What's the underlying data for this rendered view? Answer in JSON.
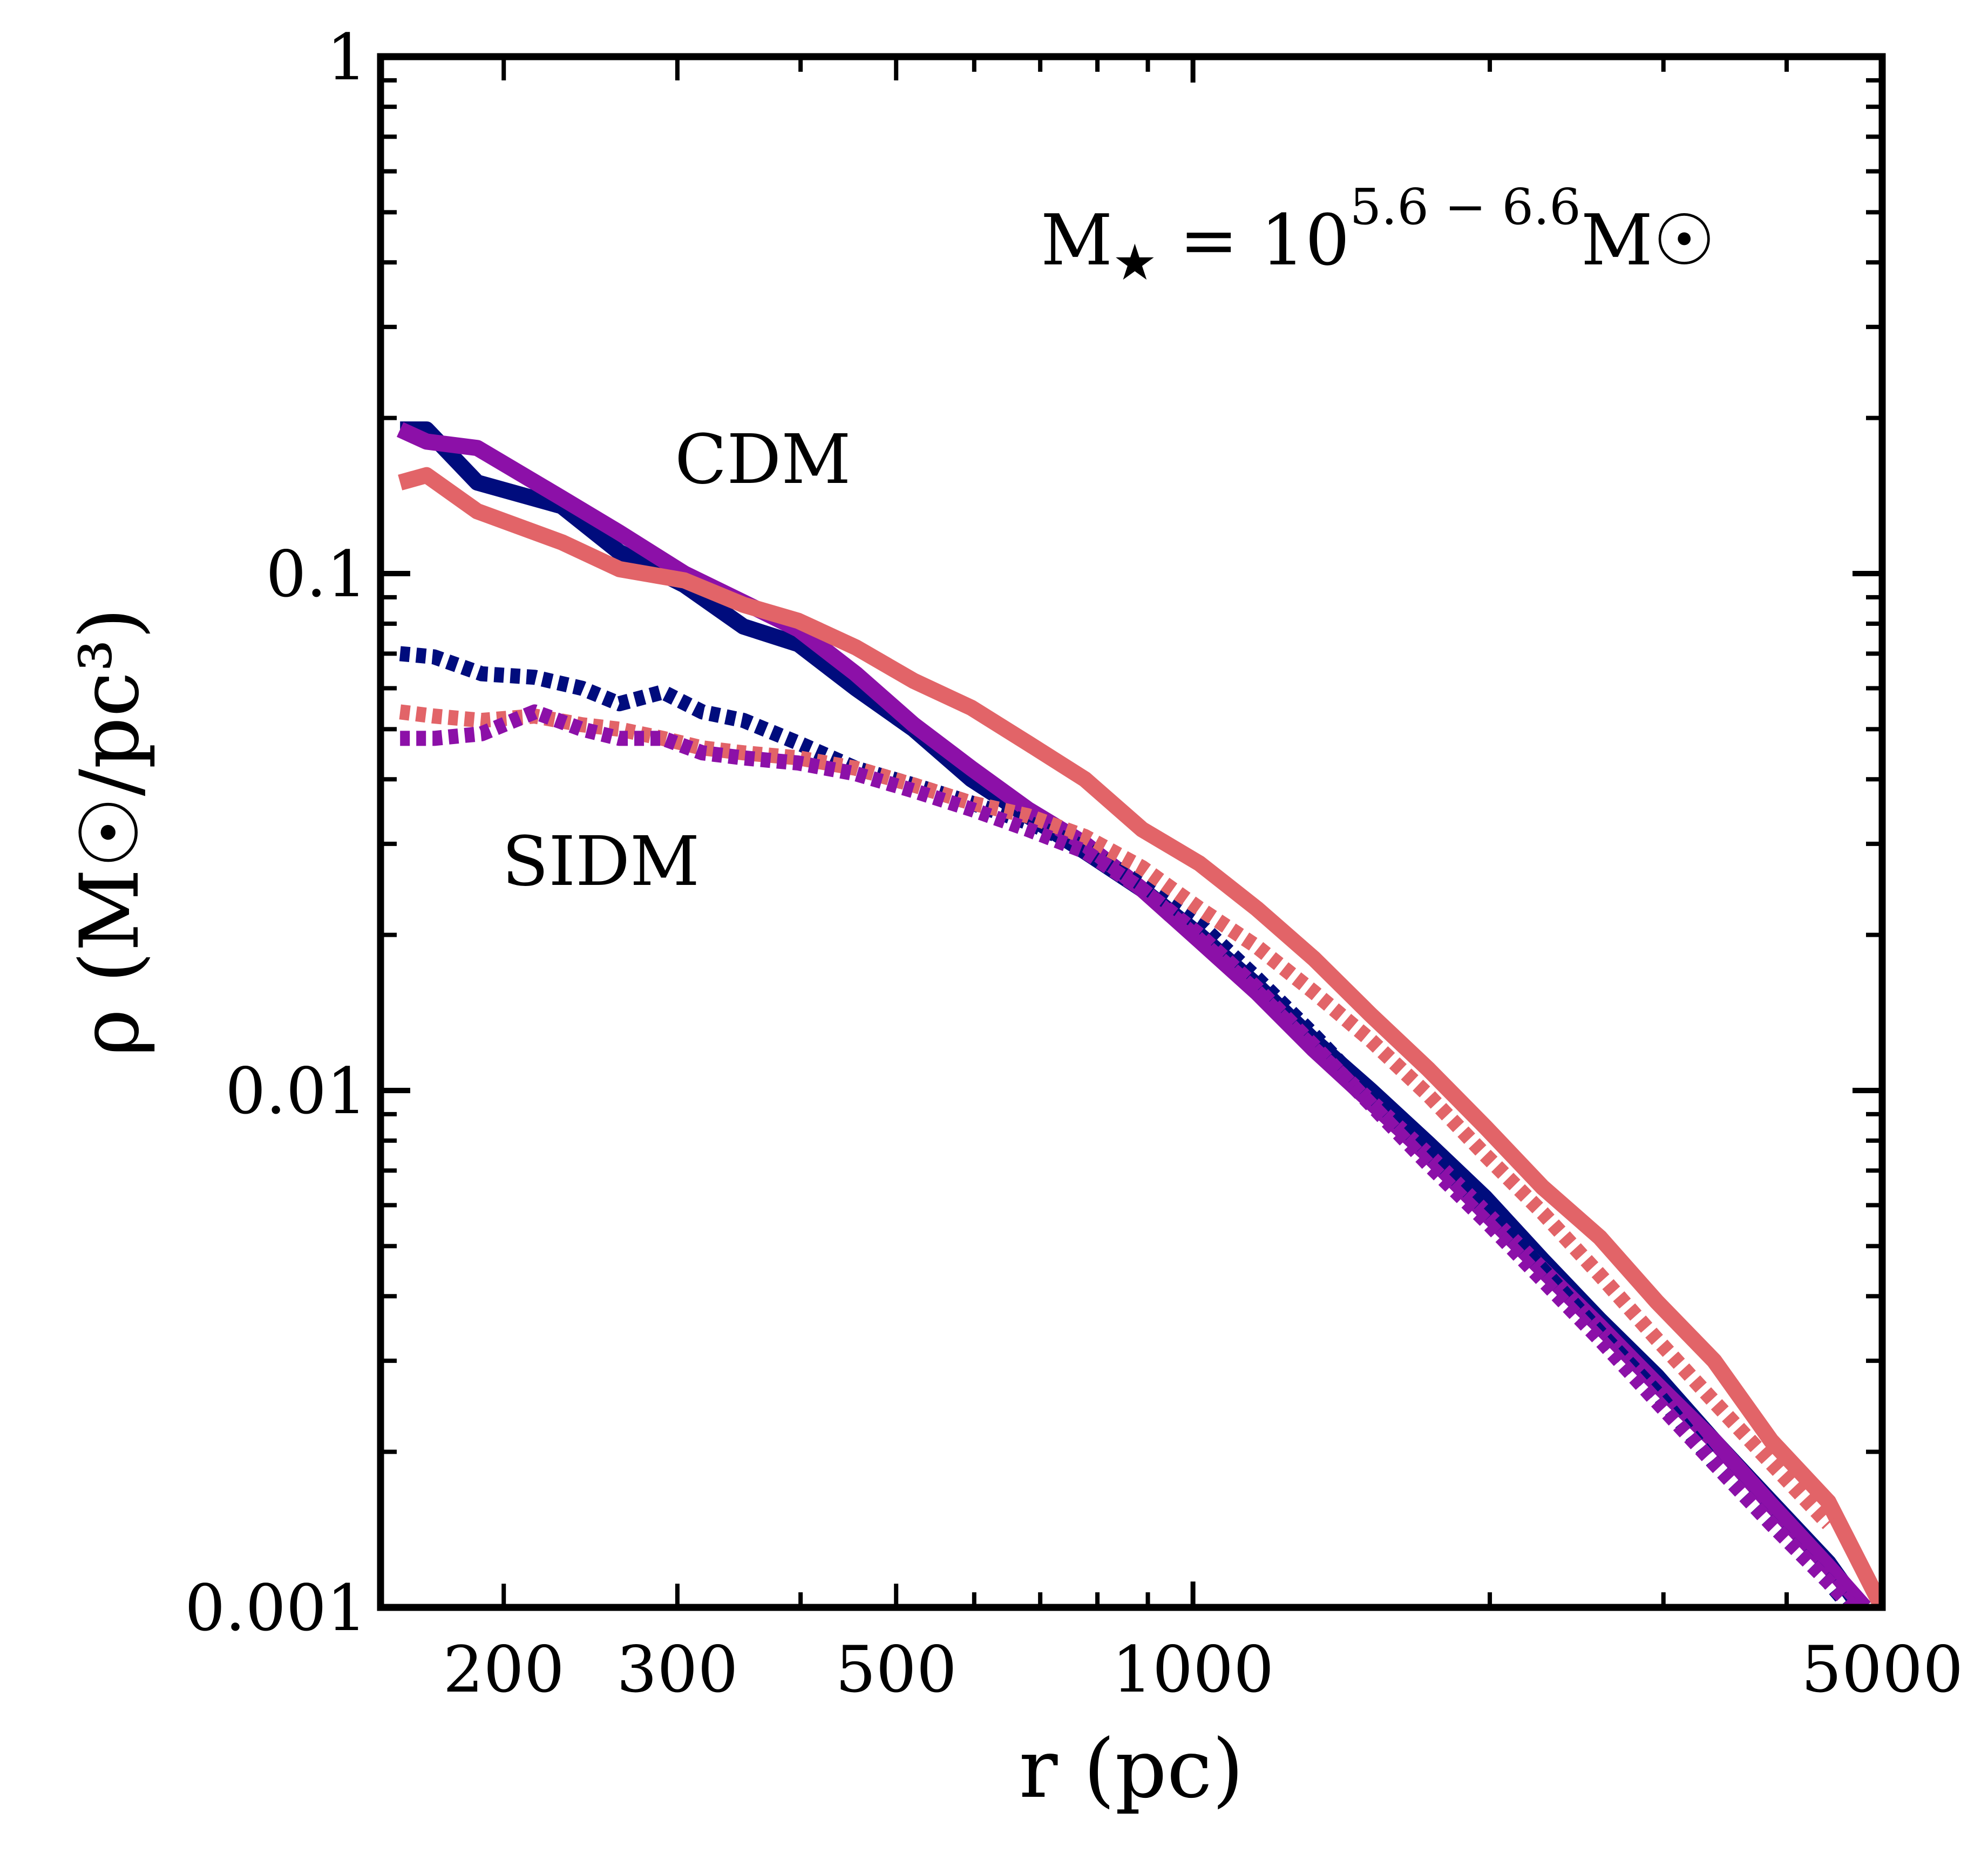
{
  "chart_data": {
    "type": "line",
    "title": "",
    "xlabel": "r (pc)",
    "ylabel": "ρ (M☉/pc³)",
    "xscale": "log",
    "yscale": "log",
    "xlim": [
      150,
      5000
    ],
    "ylim": [
      0.001,
      1
    ],
    "xticks": [
      {
        "value": 200,
        "label": "200"
      },
      {
        "value": 300,
        "label": "300"
      },
      {
        "value": 500,
        "label": "500"
      },
      {
        "value": 1000,
        "label": "1000"
      },
      {
        "value": 5000,
        "label": "5000"
      }
    ],
    "yticks": [
      {
        "value": 1,
        "label": "1"
      },
      {
        "value": 0.1,
        "label": "0.1"
      },
      {
        "value": 0.01,
        "label": "0.01"
      },
      {
        "value": 0.001,
        "label": "0.001"
      }
    ],
    "annotation": {
      "text_main": "M",
      "text_sub": "★",
      "text_eq": " = 10",
      "text_sup": "5.6 − 6.6",
      "text_unit": "M☉"
    },
    "group_labels": {
      "cdm": "CDM",
      "sidm": "SIDM"
    },
    "series": [
      {
        "name": "CDM (navy)",
        "model": "CDM",
        "color": "#000c7d",
        "style": "solid",
        "x": [
          157,
          167,
          188,
          229,
          262,
          305,
          350,
          398,
          455,
          521,
          596,
          680,
          777,
          888,
          1015,
          1160,
          1326,
          1515,
          1732,
          1979,
          2262,
          2585,
          2955,
          3377,
          3859,
          4410,
          4750
        ],
        "y": [
          0.19,
          0.19,
          0.15,
          0.135,
          0.11,
          0.095,
          0.079,
          0.073,
          0.06,
          0.05,
          0.04,
          0.034,
          0.029,
          0.0245,
          0.02,
          0.016,
          0.0125,
          0.01,
          0.0079,
          0.0062,
          0.0047,
          0.0036,
          0.0028,
          0.0021,
          0.0016,
          0.00122,
          0.001
        ]
      },
      {
        "name": "CDM (purple)",
        "model": "CDM",
        "color": "#8c10a8",
        "style": "solid",
        "x": [
          157,
          167,
          188,
          229,
          262,
          305,
          350,
          398,
          455,
          521,
          596,
          680,
          777,
          888,
          1015,
          1160,
          1326,
          1515,
          1732,
          1979,
          2262,
          2585,
          2955,
          3377,
          3859,
          4410,
          4800
        ],
        "y": [
          0.19,
          0.18,
          0.175,
          0.14,
          0.12,
          0.1,
          0.088,
          0.078,
          0.064,
          0.051,
          0.042,
          0.035,
          0.03,
          0.0245,
          0.0195,
          0.0155,
          0.012,
          0.0095,
          0.0075,
          0.0058,
          0.0045,
          0.0035,
          0.0027,
          0.0021,
          0.00158,
          0.0012,
          0.001
        ]
      },
      {
        "name": "CDM (coral)",
        "model": "CDM",
        "color": "#e26468",
        "style": "solid",
        "x": [
          157,
          167,
          188,
          229,
          262,
          305,
          350,
          398,
          455,
          521,
          596,
          680,
          777,
          888,
          1015,
          1160,
          1326,
          1515,
          1732,
          1979,
          2262,
          2585,
          2955,
          3377,
          3859,
          4410,
          5000
        ],
        "y": [
          0.15,
          0.155,
          0.132,
          0.115,
          0.102,
          0.097,
          0.087,
          0.081,
          0.072,
          0.062,
          0.055,
          0.047,
          0.04,
          0.032,
          0.0275,
          0.0225,
          0.018,
          0.014,
          0.011,
          0.0085,
          0.0065,
          0.0052,
          0.0039,
          0.003,
          0.0021,
          0.0016,
          0.001
        ]
      },
      {
        "name": "SIDM (navy)",
        "model": "SIDM",
        "color": "#000c7d",
        "style": "dotted",
        "x": [
          157,
          170,
          190,
          215,
          240,
          262,
          290,
          318,
          350,
          398,
          455,
          521,
          596,
          680,
          777,
          888,
          1015,
          1160,
          1326,
          1515,
          1732,
          1979,
          2262,
          2585,
          2955,
          3377,
          3859,
          4410,
          4750
        ],
        "y": [
          0.07,
          0.069,
          0.064,
          0.063,
          0.06,
          0.056,
          0.059,
          0.054,
          0.052,
          0.047,
          0.042,
          0.039,
          0.036,
          0.033,
          0.0295,
          0.025,
          0.021,
          0.0165,
          0.0128,
          0.0098,
          0.0076,
          0.0059,
          0.0045,
          0.0034,
          0.0026,
          0.0019,
          0.00145,
          0.00112,
          0.00095
        ]
      },
      {
        "name": "SIDM (coral)",
        "model": "SIDM",
        "color": "#e26468",
        "style": "dotted",
        "x": [
          157,
          170,
          190,
          215,
          240,
          262,
          290,
          318,
          350,
          398,
          455,
          521,
          596,
          680,
          777,
          888,
          1015,
          1160,
          1326,
          1515,
          1732,
          1979,
          2262,
          2585,
          2955,
          3377,
          3859,
          4410
        ],
        "y": [
          0.054,
          0.053,
          0.052,
          0.053,
          0.051,
          0.05,
          0.048,
          0.046,
          0.045,
          0.044,
          0.042,
          0.039,
          0.036,
          0.034,
          0.031,
          0.027,
          0.0225,
          0.019,
          0.0155,
          0.0125,
          0.0098,
          0.0075,
          0.0058,
          0.0044,
          0.0033,
          0.0025,
          0.0019,
          0.00145
        ]
      },
      {
        "name": "SIDM (purple)",
        "model": "SIDM",
        "color": "#8c10a8",
        "style": "dotted",
        "x": [
          157,
          170,
          190,
          215,
          240,
          262,
          290,
          318,
          350,
          398,
          455,
          521,
          596,
          680,
          777,
          888,
          1015,
          1160,
          1326,
          1515,
          1732,
          1979,
          2262,
          2585,
          2955,
          3377,
          3859,
          4410,
          4800
        ],
        "y": [
          0.048,
          0.048,
          0.049,
          0.054,
          0.05,
          0.048,
          0.048,
          0.045,
          0.044,
          0.043,
          0.041,
          0.038,
          0.035,
          0.032,
          0.029,
          0.0245,
          0.02,
          0.0158,
          0.0122,
          0.0094,
          0.0072,
          0.0056,
          0.0043,
          0.0033,
          0.0025,
          0.0019,
          0.00145,
          0.00112,
          0.00095
        ]
      }
    ]
  }
}
